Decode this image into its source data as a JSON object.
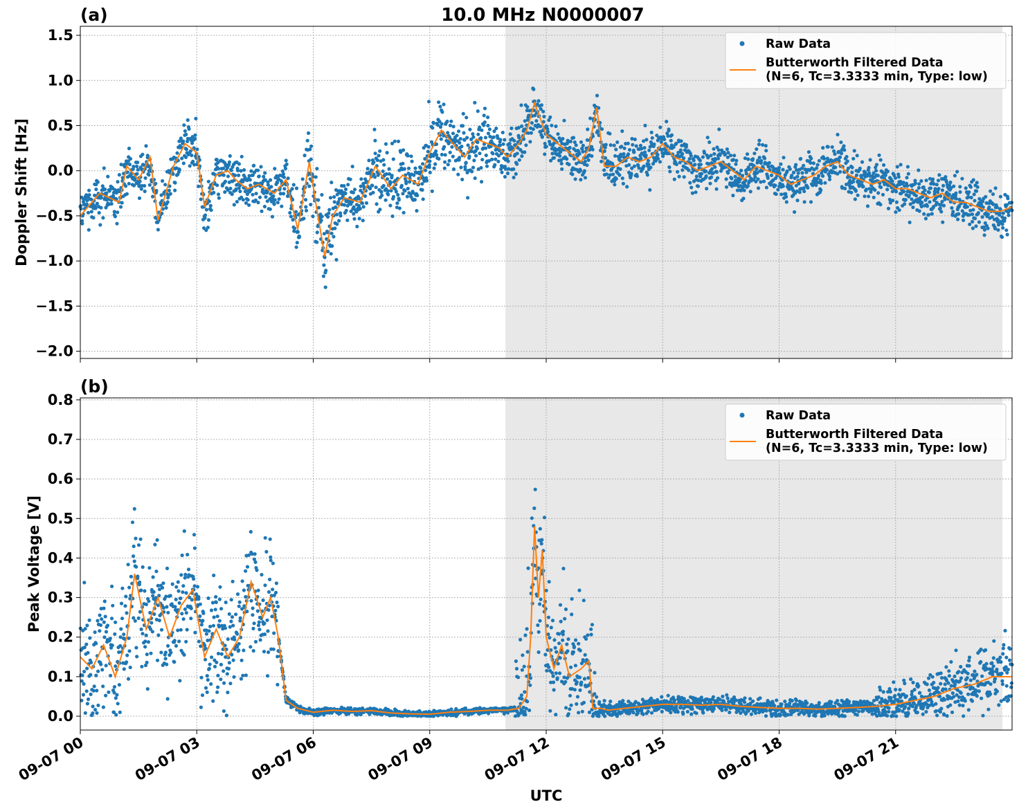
{
  "title": "10.0 MHz N0000007",
  "colors": {
    "raw": "#1f77b4",
    "filtered": "#ff7f0e",
    "shade": "#e8e8e8",
    "grid": "#b0b0b0"
  },
  "chart_data": [
    {
      "type": "scatter",
      "panel_label": "(a)",
      "ylabel": "Doppler Shift [Hz]",
      "ylim": [
        -2.08,
        1.6
      ],
      "yticks": [
        -2.0,
        -1.5,
        -1.0,
        -0.5,
        0.0,
        0.5,
        1.0,
        1.5
      ],
      "ytick_labels": [
        "−2.0",
        "−1.5",
        "−1.0",
        "−0.5",
        "0.0",
        "0.5",
        "1.0",
        "1.5"
      ],
      "xlim_hours": [
        0,
        24
      ],
      "shaded_hours": [
        10.95,
        23.75
      ],
      "grid": true,
      "legend": {
        "placement": "top-right",
        "entries": [
          {
            "label": "Raw Data"
          },
          {
            "label": "Butterworth Filtered Data\n(N=6, Tc=3.3333 min, Type: low)"
          }
        ]
      },
      "series": [
        {
          "name": "Butterworth Filtered Data",
          "x": [
            0,
            0.5,
            1,
            1.2,
            1.5,
            1.8,
            2,
            2.4,
            2.7,
            3,
            3.2,
            3.5,
            3.8,
            4,
            4.3,
            4.6,
            5,
            5.3,
            5.6,
            5.9,
            6.1,
            6.3,
            6.5,
            6.8,
            7.2,
            7.6,
            8,
            8.3,
            8.7,
            9,
            9.3,
            9.6,
            9.9,
            10.2,
            10.5,
            10.8,
            11,
            11.3,
            11.5,
            11.7,
            12,
            12.3,
            12.6,
            12.9,
            13.1,
            13.3,
            13.5,
            13.8,
            14.1,
            14.4,
            14.7,
            15,
            15.3,
            15.6,
            15.9,
            16.2,
            16.5,
            16.8,
            17.1,
            17.4,
            17.7,
            18,
            18.3,
            18.6,
            18.9,
            19.2,
            19.5,
            19.8,
            20.1,
            20.4,
            20.7,
            21,
            21.3,
            21.6,
            21.9,
            22.2,
            22.5,
            22.8,
            23.1,
            23.4,
            23.7,
            24
          ],
          "y": [
            -0.5,
            -0.25,
            -0.35,
            0.05,
            -0.1,
            0.15,
            -0.55,
            0.05,
            0.3,
            0.2,
            -0.4,
            -0.05,
            0.0,
            -0.1,
            -0.2,
            -0.15,
            -0.25,
            -0.1,
            -0.65,
            0.1,
            -0.45,
            -0.95,
            -0.5,
            -0.3,
            -0.35,
            0.05,
            -0.2,
            -0.05,
            -0.15,
            0.2,
            0.45,
            0.3,
            0.15,
            0.35,
            0.3,
            0.25,
            0.15,
            0.3,
            0.45,
            0.75,
            0.4,
            0.3,
            0.2,
            0.1,
            0.25,
            0.7,
            0.05,
            0.05,
            0.15,
            0.1,
            0.15,
            0.3,
            0.15,
            0.1,
            0.0,
            0.05,
            0.1,
            0.0,
            -0.1,
            0.05,
            0.0,
            -0.05,
            -0.15,
            -0.1,
            -0.05,
            0.05,
            0.1,
            -0.05,
            -0.1,
            -0.15,
            -0.1,
            -0.2,
            -0.2,
            -0.25,
            -0.3,
            -0.25,
            -0.35,
            -0.35,
            -0.4,
            -0.45,
            -0.45,
            -0.4
          ]
        }
      ]
    },
    {
      "type": "scatter",
      "panel_label": "(b)",
      "ylabel": "Peak Voltage [V]",
      "xlabel": "UTC",
      "ylim": [
        -0.035,
        0.805
      ],
      "yticks": [
        0.0,
        0.1,
        0.2,
        0.3,
        0.4,
        0.5,
        0.6,
        0.7,
        0.8
      ],
      "ytick_labels": [
        "0.0",
        "0.1",
        "0.2",
        "0.3",
        "0.4",
        "0.5",
        "0.6",
        "0.7",
        "0.8"
      ],
      "xlim_hours": [
        0,
        24
      ],
      "xticks_hours": [
        0,
        3,
        6,
        9,
        12,
        15,
        18,
        21
      ],
      "xtick_labels": [
        "09-07 00",
        "09-07 03",
        "09-07 06",
        "09-07 09",
        "09-07 12",
        "09-07 15",
        "09-07 18",
        "09-07 21"
      ],
      "shaded_hours": [
        10.95,
        23.75
      ],
      "grid": true,
      "legend": {
        "placement": "top-right",
        "entries": [
          {
            "label": "Raw Data"
          },
          {
            "label": "Butterworth Filtered Data\n(N=6, Tc=3.3333 min, Type: low)"
          }
        ]
      },
      "series": [
        {
          "name": "Butterworth Filtered Data",
          "x": [
            0,
            0.3,
            0.6,
            0.9,
            1.2,
            1.4,
            1.7,
            2,
            2.3,
            2.6,
            2.9,
            3.2,
            3.5,
            3.8,
            4.1,
            4.4,
            4.7,
            4.9,
            5.1,
            5.3,
            5.6,
            6,
            6.5,
            7,
            7.5,
            8,
            8.5,
            9,
            9.5,
            10,
            10.5,
            11,
            11.3,
            11.5,
            11.6,
            11.7,
            11.8,
            11.9,
            12,
            12.2,
            12.4,
            12.6,
            12.9,
            13.1,
            13.2,
            13.4,
            13.6,
            14,
            14.5,
            15,
            15.5,
            16,
            16.5,
            17,
            17.5,
            18,
            18.5,
            19,
            19.5,
            20,
            20.5,
            21,
            21.5,
            22,
            22.5,
            23,
            23.5,
            24
          ],
          "y": [
            0.15,
            0.12,
            0.18,
            0.1,
            0.2,
            0.36,
            0.22,
            0.3,
            0.2,
            0.28,
            0.32,
            0.15,
            0.22,
            0.15,
            0.2,
            0.34,
            0.25,
            0.3,
            0.2,
            0.04,
            0.02,
            0.01,
            0.015,
            0.012,
            0.014,
            0.008,
            0.006,
            0.005,
            0.01,
            0.012,
            0.015,
            0.015,
            0.02,
            0.05,
            0.2,
            0.48,
            0.3,
            0.42,
            0.2,
            0.12,
            0.18,
            0.1,
            0.12,
            0.14,
            0.02,
            0.02,
            0.015,
            0.02,
            0.025,
            0.03,
            0.03,
            0.028,
            0.03,
            0.025,
            0.022,
            0.02,
            0.02,
            0.018,
            0.02,
            0.022,
            0.025,
            0.03,
            0.04,
            0.05,
            0.07,
            0.08,
            0.1,
            0.1
          ]
        }
      ]
    }
  ]
}
